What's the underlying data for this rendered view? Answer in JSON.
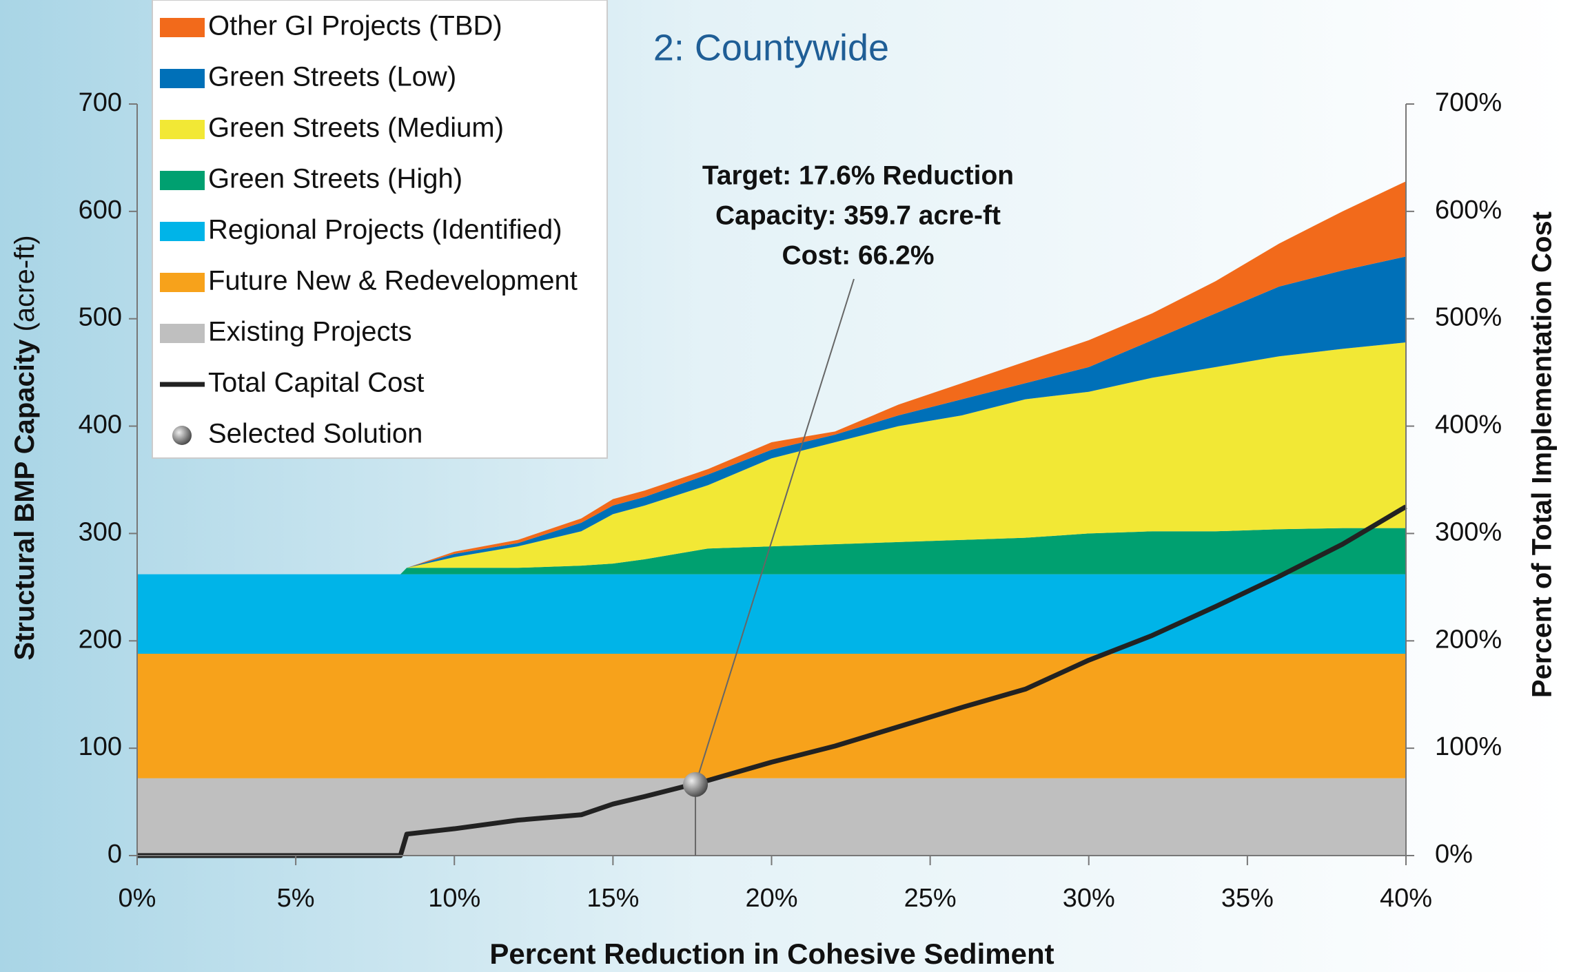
{
  "chart_data": {
    "type": "stacked_area",
    "title": "2: Countywide",
    "x_label": "Percent Reduction in Cohesive Sediment",
    "y_label": "Structural BMP Capacity",
    "y_label_unit": "(acre-ft)",
    "y2_label": "Percent of Total Implementation Cost",
    "x": [
      0,
      8.3,
      8.5,
      10,
      12,
      14,
      15,
      16,
      18,
      20,
      22,
      24,
      26,
      28,
      30,
      32,
      34,
      36,
      38,
      40
    ],
    "series": [
      {
        "name": "Existing Projects",
        "color": "#bfbfbf",
        "values": [
          72,
          72,
          72,
          72,
          72,
          72,
          72,
          72,
          72,
          72,
          72,
          72,
          72,
          72,
          72,
          72,
          72,
          72,
          72,
          72
        ]
      },
      {
        "name": "Future New & Redevelopment",
        "color": "#f7a21b",
        "values": [
          116,
          116,
          116,
          116,
          116,
          116,
          116,
          116,
          116,
          116,
          116,
          116,
          116,
          116,
          116,
          116,
          116,
          116,
          116,
          116
        ]
      },
      {
        "name": "Regional Projects (Identified)",
        "color": "#00b4e8",
        "values": [
          74,
          74,
          74,
          74,
          74,
          74,
          74,
          74,
          74,
          74,
          74,
          74,
          74,
          74,
          74,
          74,
          74,
          74,
          74,
          74
        ]
      },
      {
        "name": "Green Streets (High)",
        "color": "#00a070",
        "values": [
          0,
          0,
          6,
          6,
          6,
          8,
          10,
          14,
          24,
          26,
          28,
          30,
          32,
          34,
          38,
          40,
          40,
          42,
          43,
          43
        ]
      },
      {
        "name": "Green Streets (Medium)",
        "color": "#f2e835",
        "values": [
          0,
          0,
          0,
          10,
          20,
          32,
          46,
          50,
          59,
          82,
          95,
          108,
          116,
          129,
          132,
          143,
          153,
          161,
          167,
          173
        ]
      },
      {
        "name": "Green Streets (Low)",
        "color": "#0070b8",
        "values": [
          0,
          0,
          0,
          3,
          3,
          8,
          8,
          8,
          10,
          8,
          7,
          10,
          15,
          15,
          23,
          35,
          50,
          65,
          73,
          80
        ]
      },
      {
        "name": "Other GI Projects (TBD)",
        "color": "#f26a1b",
        "values": [
          0,
          0,
          0,
          2,
          3,
          4,
          6,
          6,
          5,
          7,
          3,
          10,
          15,
          20,
          25,
          25,
          30,
          40,
          55,
          70
        ]
      },
      {
        "name": "Total Capital Cost",
        "color": "#222222",
        "axis": "y2",
        "type": "line",
        "values": [
          0,
          0,
          20,
          25,
          33,
          38,
          48,
          55,
          70,
          87,
          102,
          120,
          138,
          155,
          182,
          205,
          232,
          260,
          290,
          325
        ]
      }
    ],
    "selected_solution": {
      "name": "Selected Solution",
      "x": 17.6,
      "y": 66.2,
      "axis": "y2"
    },
    "annotation": [
      "Target: 17.6% Reduction",
      "Capacity: 359.7 acre-ft",
      "Cost: 66.2%"
    ],
    "xlim": [
      0,
      40
    ],
    "xticks": [
      {
        "value": 0,
        "label": "0%"
      },
      {
        "value": 5,
        "label": "5%"
      },
      {
        "value": 10,
        "label": "10%"
      },
      {
        "value": 15,
        "label": "15%"
      },
      {
        "value": 20,
        "label": "20%"
      },
      {
        "value": 25,
        "label": "25%"
      },
      {
        "value": 30,
        "label": "30%"
      },
      {
        "value": 35,
        "label": "35%"
      },
      {
        "value": 40,
        "label": "40%"
      }
    ],
    "ylim": [
      0,
      700
    ],
    "yticks": [
      0,
      100,
      200,
      300,
      400,
      500,
      600,
      700
    ],
    "y2lim": [
      0,
      700
    ],
    "y2ticks": [
      {
        "value": 0,
        "label": "0%"
      },
      {
        "value": 100,
        "label": "100%"
      },
      {
        "value": 200,
        "label": "200%"
      },
      {
        "value": 300,
        "label": "300%"
      },
      {
        "value": 400,
        "label": "400%"
      },
      {
        "value": 500,
        "label": "500%"
      },
      {
        "value": 600,
        "label": "600%"
      },
      {
        "value": 700,
        "label": "700%"
      }
    ],
    "legend": "upper left"
  }
}
